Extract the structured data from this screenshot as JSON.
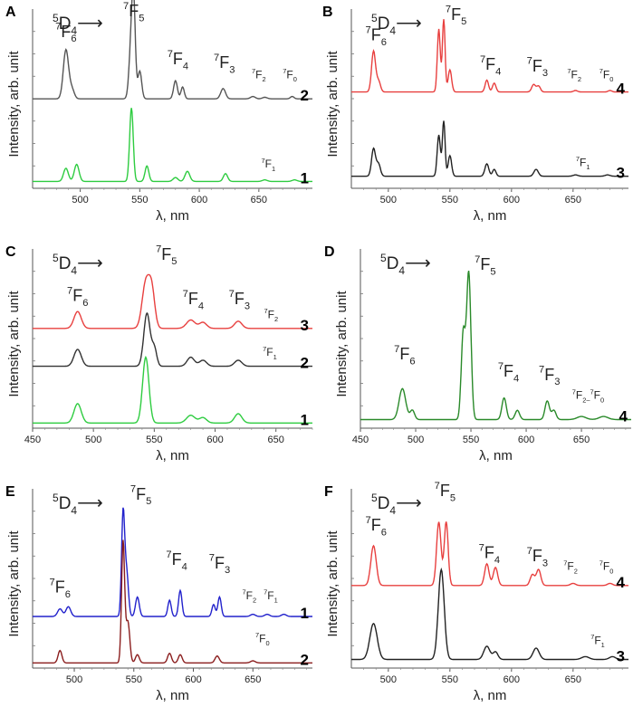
{
  "chart_data": [
    {
      "panel": "A",
      "type": "line",
      "xlabel": "λ, nm",
      "ylabel": "Intensity, arb. unit",
      "xlim": [
        460,
        695
      ],
      "xticks": [
        500,
        550,
        600,
        650
      ],
      "header": {
        "main": "D",
        "sup": "5",
        "sub": "4",
        "arrow": "⟶"
      },
      "series": [
        {
          "name": "2",
          "color": "#555555",
          "offset": 0.52,
          "scale": 0.46,
          "peaks": [
            [
              488,
              0.62,
              2.2
            ],
            [
              493,
              0.12,
              2
            ],
            [
              543,
              0.76,
              1.8
            ],
            [
              545,
              0.95,
              1.4
            ],
            [
              550,
              0.35,
              1.6
            ],
            [
              580,
              0.23,
              1.6
            ],
            [
              586,
              0.15,
              1.4
            ],
            [
              620,
              0.13,
              2
            ],
            [
              645,
              0.03,
              2
            ],
            [
              655,
              0.02,
              2
            ],
            [
              678,
              0.03,
              1.5
            ]
          ]
        },
        {
          "name": "1",
          "color": "#2ecc40",
          "offset": 0.04,
          "scale": 0.45,
          "peaks": [
            [
              488,
              0.17,
              2
            ],
            [
              497,
              0.22,
              2
            ],
            [
              543,
              0.95,
              1.5
            ],
            [
              556,
              0.2,
              1.6
            ],
            [
              580,
              0.05,
              2
            ],
            [
              590,
              0.13,
              2
            ],
            [
              622,
              0.1,
              1.8
            ],
            [
              655,
              0.02,
              2
            ],
            [
              680,
              0.02,
              2
            ]
          ]
        }
      ],
      "annotations": [
        {
          "main": "F",
          "sup": "7",
          "sub": "6",
          "x": 488,
          "y": 0.88,
          "size": "large"
        },
        {
          "main": "F",
          "sup": "7",
          "sub": "5",
          "x": 545,
          "y": 1.0,
          "size": "large"
        },
        {
          "main": "F",
          "sup": "7",
          "sub": "4",
          "x": 582,
          "y": 0.72,
          "size": "large"
        },
        {
          "main": "F",
          "sup": "7",
          "sub": "3",
          "x": 621,
          "y": 0.7,
          "size": "large"
        },
        {
          "main": "F",
          "sup": "7",
          "sub": "2",
          "x": 650,
          "y": 0.64,
          "size": "small"
        },
        {
          "main": "F",
          "sup": "7",
          "sub": "0",
          "x": 676,
          "y": 0.64,
          "size": "small"
        },
        {
          "main": "F",
          "sup": "7",
          "sub": "1",
          "x": 658,
          "y": 0.12,
          "size": "small"
        }
      ]
    },
    {
      "panel": "B",
      "type": "line",
      "xlabel": "λ, nm",
      "ylabel": "Intensity, arb. unit",
      "xlim": [
        470,
        695
      ],
      "xticks": [
        500,
        550,
        600,
        650
      ],
      "header": {
        "main": "D",
        "sup": "5",
        "sub": "4",
        "arrow": "⟶"
      },
      "series": [
        {
          "name": "4",
          "color": "#e8403f",
          "offset": 0.56,
          "scale": 0.43,
          "peaks": [
            [
              488,
              0.55,
              1.6
            ],
            [
              492,
              0.15,
              1.6
            ],
            [
              541,
              0.85,
              1.2
            ],
            [
              545,
              0.98,
              1.1
            ],
            [
              550,
              0.3,
              1.4
            ],
            [
              580,
              0.16,
              1.4
            ],
            [
              586,
              0.12,
              1.4
            ],
            [
              618,
              0.1,
              1.6
            ],
            [
              622,
              0.08,
              1.5
            ],
            [
              652,
              0.02,
              1.6
            ],
            [
              680,
              0.02,
              1.5
            ]
          ]
        },
        {
          "name": "3",
          "color": "#222222",
          "offset": 0.07,
          "scale": 0.4,
          "peaks": [
            [
              488,
              0.4,
              1.6
            ],
            [
              492,
              0.18,
              1.6
            ],
            [
              541,
              0.6,
              1.3
            ],
            [
              545,
              0.8,
              1.1
            ],
            [
              550,
              0.3,
              1.4
            ],
            [
              580,
              0.18,
              1.6
            ],
            [
              586,
              0.1,
              1.4
            ],
            [
              620,
              0.1,
              1.8
            ],
            [
              652,
              0.02,
              2
            ],
            [
              678,
              0.02,
              2
            ]
          ]
        }
      ],
      "annotations": [
        {
          "main": "F",
          "sup": "7",
          "sub": "6",
          "x": 490,
          "y": 0.86,
          "size": "large"
        },
        {
          "main": "F",
          "sup": "7",
          "sub": "5",
          "x": 555,
          "y": 0.98,
          "size": "large"
        },
        {
          "main": "F",
          "sup": "7",
          "sub": "4",
          "x": 583,
          "y": 0.69,
          "size": "large"
        },
        {
          "main": "F",
          "sup": "7",
          "sub": "3",
          "x": 621,
          "y": 0.68,
          "size": "large"
        },
        {
          "main": "F",
          "sup": "7",
          "sub": "2",
          "x": 651,
          "y": 0.64,
          "size": "small"
        },
        {
          "main": "F",
          "sup": "7",
          "sub": "0",
          "x": 677,
          "y": 0.64,
          "size": "small"
        },
        {
          "main": "F",
          "sup": "7",
          "sub": "1",
          "x": 658,
          "y": 0.13,
          "size": "small"
        }
      ]
    },
    {
      "panel": "C",
      "type": "line",
      "xlabel": "λ, nm",
      "ylabel": "Intensity, arb. unit",
      "xlim": [
        450,
        680
      ],
      "xticks": [
        450,
        500,
        550,
        600,
        650
      ],
      "header": {
        "main": "D",
        "sup": "5",
        "sub": "4",
        "arrow": "⟶"
      },
      "series": [
        {
          "name": "3",
          "color": "#e8403f",
          "offset": 0.58,
          "scale": 0.35,
          "peaks": [
            [
              487,
              0.28,
              3
            ],
            [
              543,
              0.75,
              3
            ],
            [
              548,
              0.6,
              2.5
            ],
            [
              580,
              0.14,
              3.5
            ],
            [
              590,
              0.1,
              3
            ],
            [
              619,
              0.12,
              3
            ]
          ]
        },
        {
          "name": "2",
          "color": "#333333",
          "offset": 0.36,
          "scale": 0.35,
          "peaks": [
            [
              487,
              0.28,
              3
            ],
            [
              544,
              0.88,
              2.6
            ],
            [
              550,
              0.3,
              2
            ],
            [
              580,
              0.15,
              3
            ],
            [
              590,
              0.1,
              3
            ],
            [
              619,
              0.1,
              3
            ]
          ]
        },
        {
          "name": "1",
          "color": "#2ecc40",
          "offset": 0.03,
          "scale": 0.45,
          "peaks": [
            [
              487,
              0.25,
              3
            ],
            [
              543,
              0.85,
              2.6
            ],
            [
              580,
              0.1,
              3.5
            ],
            [
              590,
              0.07,
              3
            ],
            [
              619,
              0.12,
              3
            ]
          ]
        }
      ],
      "annotations": [
        {
          "main": "F",
          "sup": "7",
          "sub": "6",
          "x": 487,
          "y": 0.74,
          "size": "large"
        },
        {
          "main": "F",
          "sup": "7",
          "sub": "5",
          "x": 560,
          "y": 0.98,
          "size": "large"
        },
        {
          "main": "F",
          "sup": "7",
          "sub": "4",
          "x": 582,
          "y": 0.72,
          "size": "large"
        },
        {
          "main": "F",
          "sup": "7",
          "sub": "3",
          "x": 620,
          "y": 0.72,
          "size": "large"
        },
        {
          "main": "F",
          "sup": "7",
          "sub": "2",
          "x": 646,
          "y": 0.64,
          "size": "small"
        },
        {
          "main": "F",
          "sup": "7",
          "sub": "1",
          "x": 645,
          "y": 0.42,
          "size": "small"
        }
      ]
    },
    {
      "panel": "D",
      "type": "line",
      "xlabel": "λ, nm",
      "ylabel": "Intensity, arb. unit",
      "xlim": [
        450,
        695
      ],
      "xticks": [
        450,
        500,
        550,
        600,
        650
      ],
      "header": {
        "main": "D",
        "sup": "5",
        "sub": "4",
        "arrow": "⟶"
      },
      "series": [
        {
          "name": "4",
          "color": "#2a8a2a",
          "offset": 0.05,
          "scale": 0.9,
          "peaks": [
            [
              488,
              0.2,
              3
            ],
            [
              497,
              0.06,
              2
            ],
            [
              543,
              0.55,
              1.8
            ],
            [
              548,
              0.95,
              2
            ],
            [
              580,
              0.14,
              2
            ],
            [
              592,
              0.06,
              2
            ],
            [
              619,
              0.12,
              2
            ],
            [
              625,
              0.06,
              2
            ],
            [
              650,
              0.02,
              4
            ],
            [
              670,
              0.02,
              4
            ]
          ]
        }
      ],
      "annotations": [
        {
          "main": "F",
          "sup": "7",
          "sub": "6",
          "x": 490,
          "y": 0.4,
          "size": "large"
        },
        {
          "main": "F",
          "sup": "7",
          "sub": "5",
          "x": 563,
          "y": 0.92,
          "size": "large"
        },
        {
          "main": "F",
          "sup": "7",
          "sub": "4",
          "x": 584,
          "y": 0.3,
          "size": "large"
        },
        {
          "main": "F",
          "sup": "7",
          "sub": "3",
          "x": 621,
          "y": 0.28,
          "size": "large"
        },
        {
          "main": "F",
          "sup": "7",
          "sub": "2–",
          "sup2": "7",
          "main2": "F",
          "sub2": "0",
          "x": 656,
          "y": 0.17,
          "size": "small"
        }
      ]
    },
    {
      "panel": "E",
      "type": "line",
      "xlabel": "λ, nm",
      "ylabel": "Intensity, arb. unit",
      "xlim": [
        465,
        700
      ],
      "xticks": [
        500,
        550,
        600,
        650
      ],
      "header": {
        "main": "D",
        "sup": "5",
        "sub": "4",
        "arrow": "⟶"
      },
      "series": [
        {
          "name": "1",
          "color": "#2222cc",
          "offset": 0.3,
          "scale": 0.63,
          "peaks": [
            [
              488,
              0.07,
              2
            ],
            [
              495,
              0.09,
              2
            ],
            [
              541,
              0.95,
              1.3
            ],
            [
              544,
              0.4,
              1.5
            ],
            [
              553,
              0.18,
              1.6
            ],
            [
              580,
              0.15,
              1.4
            ],
            [
              589,
              0.24,
              1.4
            ],
            [
              617,
              0.11,
              1.4
            ],
            [
              622,
              0.18,
              1.4
            ],
            [
              650,
              0.02,
              2
            ],
            [
              662,
              0.02,
              2
            ],
            [
              676,
              0.02,
              2
            ]
          ]
        },
        {
          "name": "2",
          "color": "#8b1e1e",
          "offset": 0.03,
          "scale": 0.8,
          "peaks": [
            [
              488,
              0.09,
              1.6
            ],
            [
              541,
              0.88,
              1.3
            ],
            [
              545,
              0.3,
              1.6
            ],
            [
              553,
              0.06,
              1.6
            ],
            [
              580,
              0.07,
              1.6
            ],
            [
              589,
              0.06,
              1.6
            ],
            [
              620,
              0.05,
              1.8
            ],
            [
              650,
              0.015,
              2
            ]
          ]
        }
      ],
      "annotations": [
        {
          "main": "F",
          "sup": "7",
          "sub": "6",
          "x": 488,
          "y": 0.44,
          "size": "large"
        },
        {
          "main": "F",
          "sup": "7",
          "sub": "5",
          "x": 556,
          "y": 0.98,
          "size": "large"
        },
        {
          "main": "F",
          "sup": "7",
          "sub": "4",
          "x": 586,
          "y": 0.6,
          "size": "large"
        },
        {
          "main": "F",
          "sup": "7",
          "sub": "3",
          "x": 622,
          "y": 0.58,
          "size": "large"
        },
        {
          "main": "F",
          "sup": "7",
          "sub": "2",
          "x": 647,
          "y": 0.4,
          "size": "small"
        },
        {
          "main": "F",
          "sup": "7",
          "sub": "1",
          "x": 665,
          "y": 0.4,
          "size": "small"
        },
        {
          "main": "F",
          "sup": "7",
          "sub": "0",
          "x": 658,
          "y": 0.15,
          "size": "small"
        }
      ]
    },
    {
      "panel": "F",
      "type": "line",
      "xlabel": "λ, nm",
      "ylabel": "Intensity, arb. unit",
      "xlim": [
        470,
        695
      ],
      "xticks": [
        500,
        550,
        600,
        650
      ],
      "header": {
        "main": "D",
        "sup": "5",
        "sub": "4",
        "arrow": "⟶"
      },
      "series": [
        {
          "name": "4",
          "color": "#e8403f",
          "offset": 0.48,
          "scale": 0.42,
          "peaks": [
            [
              488,
              0.55,
              2.2
            ],
            [
              541,
              0.88,
              1.8
            ],
            [
              547,
              0.88,
              1.6
            ],
            [
              580,
              0.3,
              1.8
            ],
            [
              587,
              0.25,
              1.8
            ],
            [
              617,
              0.15,
              1.8
            ],
            [
              622,
              0.22,
              1.8
            ],
            [
              650,
              0.03,
              2
            ],
            [
              680,
              0.03,
              2
            ]
          ]
        },
        {
          "name": "3",
          "color": "#222222",
          "offset": 0.05,
          "scale": 0.55,
          "peaks": [
            [
              488,
              0.38,
              3
            ],
            [
              543,
              0.95,
              2.4
            ],
            [
              580,
              0.14,
              2.5
            ],
            [
              587,
              0.08,
              2
            ],
            [
              620,
              0.12,
              2.5
            ],
            [
              660,
              0.03,
              3
            ],
            [
              682,
              0.03,
              2.5
            ]
          ]
        }
      ],
      "annotations": [
        {
          "main": "F",
          "sup": "7",
          "sub": "6",
          "x": 490,
          "y": 0.8,
          "size": "large"
        },
        {
          "main": "F",
          "sup": "7",
          "sub": "5",
          "x": 546,
          "y": 1.0,
          "size": "large"
        },
        {
          "main": "F",
          "sup": "7",
          "sub": "4",
          "x": 582,
          "y": 0.64,
          "size": "large"
        },
        {
          "main": "F",
          "sup": "7",
          "sub": "3",
          "x": 621,
          "y": 0.62,
          "size": "large"
        },
        {
          "main": "F",
          "sup": "7",
          "sub": "2",
          "x": 648,
          "y": 0.57,
          "size": "small"
        },
        {
          "main": "F",
          "sup": "7",
          "sub": "0",
          "x": 677,
          "y": 0.57,
          "size": "small"
        },
        {
          "main": "F",
          "sup": "7",
          "sub": "1",
          "x": 670,
          "y": 0.14,
          "size": "small"
        }
      ]
    }
  ]
}
